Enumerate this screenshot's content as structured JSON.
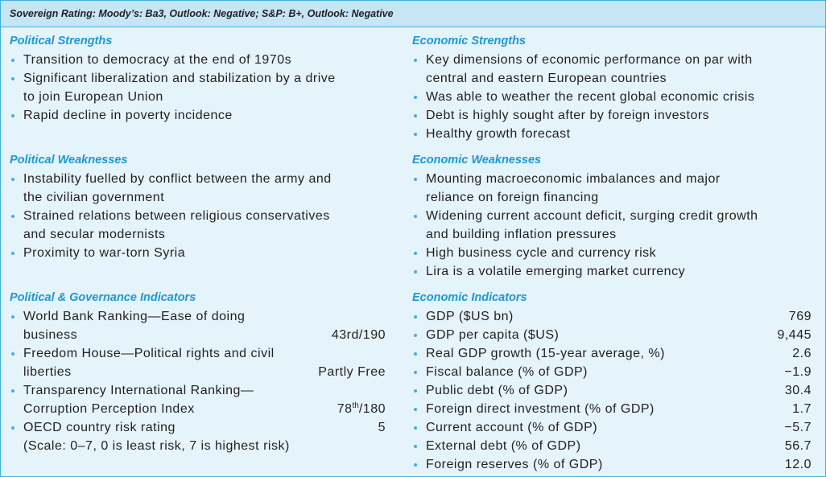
{
  "header": {
    "rating": "Sovereign Rating: Moody’s: Ba3, Outlook: Negative; S&P: B+, Outlook: Negative"
  },
  "colors": {
    "header_bg": "#c6e5f5",
    "body_bg": "#e5f3fa",
    "accent": "#1b9ad6",
    "bullet": "#3fb0e0"
  },
  "political_strengths": {
    "title": "Political Strengths",
    "items": [
      {
        "lines": [
          "Transition to democracy at the end of 1970s"
        ]
      },
      {
        "lines": [
          "Significant liberalization and stabilization by a drive",
          "to join European Union"
        ]
      },
      {
        "lines": [
          "Rapid decline in poverty incidence"
        ]
      }
    ]
  },
  "political_weaknesses": {
    "title": "Political Weaknesses",
    "items": [
      {
        "lines": [
          "Instability fuelled by conflict between the army and",
          "the civilian government"
        ]
      },
      {
        "lines": [
          "Strained relations between religious conservatives",
          "and secular modernists"
        ]
      },
      {
        "lines": [
          "Proximity to war-torn Syria"
        ]
      }
    ]
  },
  "governance_indicators": {
    "title": "Political & Governance Indicators",
    "items": [
      {
        "lines": [
          "World Bank Ranking—Ease of doing",
          "business"
        ],
        "value": "43rd/190"
      },
      {
        "lines": [
          "Freedom House—Political rights and civil",
          "liberties"
        ],
        "value": "Partly Free"
      },
      {
        "lines": [
          "Transparency International Ranking—",
          "Corruption Perception Index"
        ],
        "value": {
          "main": "78",
          "sup": "th",
          "rest": "/180"
        }
      },
      {
        "lines": [
          "OECD country risk rating",
          "(Scale: 0–7, 0 is least risk, 7 is highest risk)"
        ],
        "value": "5"
      }
    ]
  },
  "economic_strengths": {
    "title": "Economic Strengths",
    "items": [
      {
        "lines": [
          "Key dimensions of economic performance on par with",
          "central and eastern European countries"
        ]
      },
      {
        "lines": [
          "Was able to weather the recent global economic crisis"
        ]
      },
      {
        "lines": [
          "Debt is highly sought after by foreign investors"
        ]
      },
      {
        "lines": [
          "Healthy growth forecast"
        ]
      }
    ]
  },
  "economic_weaknesses": {
    "title": "Economic Weaknesses",
    "items": [
      {
        "lines": [
          "Mounting macroeconomic imbalances and major",
          "reliance on foreign financing"
        ]
      },
      {
        "lines": [
          "Widening current account deficit, surging credit growth",
          "and building inflation pressures"
        ]
      },
      {
        "lines": [
          "High business cycle and currency risk"
        ]
      },
      {
        "lines": [
          "Lira is a volatile emerging market currency"
        ]
      }
    ]
  },
  "economic_indicators": {
    "title": "Economic Indicators",
    "items": [
      {
        "label": "GDP ($US bn)",
        "value": "769"
      },
      {
        "label": "GDP per capita ($US)",
        "value": "9,445"
      },
      {
        "label": "Real GDP growth (15-year average, %)",
        "value": "2.6"
      },
      {
        "label": "Fiscal balance (% of GDP)",
        "value": "−1.9"
      },
      {
        "label": "Public debt (% of GDP)",
        "value": "30.4"
      },
      {
        "label": "Foreign direct investment (% of GDP)",
        "value": "1.7"
      },
      {
        "label": "Current account (% of GDP)",
        "value": "−5.7"
      },
      {
        "label": "External debt (% of GDP)",
        "value": "56.7"
      },
      {
        "label": "Foreign reserves (% of GDP)",
        "value": "12.0"
      }
    ]
  }
}
